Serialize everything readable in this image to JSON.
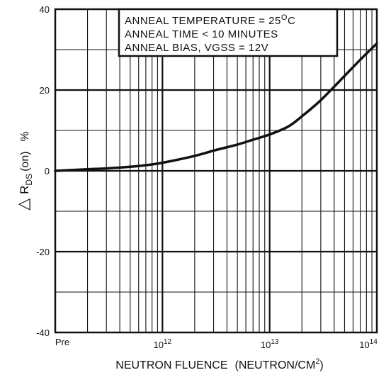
{
  "chart_data": {
    "type": "line",
    "xlabel": "NEUTRON FLUENCE",
    "xlabel_units": "(NEUTRON/CM",
    "xlabel_units_sup": "2",
    "xlabel_units_close": ")",
    "ylabel_delta": "△",
    "ylabel_main": "R",
    "ylabel_sub": "DS",
    "ylabel_tail": "(on)",
    "ylabel_units": "%",
    "x_scale": "log",
    "x_pre_label": "Pre",
    "x_decades": [
      {
        "base": "10",
        "exp": "12",
        "value": 1000000000000.0
      },
      {
        "base": "10",
        "exp": "13",
        "value": 10000000000000.0
      },
      {
        "base": "10",
        "exp": "14",
        "value": 100000000000000.0
      }
    ],
    "xlim": [
      100000000000.0,
      100000000000000.0
    ],
    "ylim": [
      -40,
      40
    ],
    "y_ticks": [
      {
        "value": 40,
        "label": "40"
      },
      {
        "value": 20,
        "label": "20"
      },
      {
        "value": 0,
        "label": "0"
      },
      {
        "value": -20,
        "label": "-20"
      },
      {
        "value": -40,
        "label": "-40"
      }
    ],
    "y_minor_gridlines": [
      30,
      10,
      -10,
      -30
    ],
    "grid": true,
    "annotations": [
      {
        "text": "ANNEAL TEMPERATURE = 25",
        "sup": "O",
        "tail": "C"
      },
      {
        "text": "ANNEAL TIME < 10 MINUTES",
        "sup": "",
        "tail": ""
      },
      {
        "text": "ANNEAL BIAS, VGSS = 12V",
        "sup": "",
        "tail": ""
      }
    ],
    "series": [
      {
        "color": "#111111",
        "x": [
          100000000000.0,
          200000000000.0,
          300000000000.0,
          500000000000.0,
          700000000000.0,
          1000000000000.0,
          2000000000000.0,
          3000000000000.0,
          5000000000000.0,
          7000000000000.0,
          10000000000000.0,
          15000000000000.0,
          20000000000000.0,
          30000000000000.0,
          50000000000000.0,
          70000000000000.0,
          100000000000000.0
        ],
        "y": [
          0,
          0.4,
          0.6,
          1.0,
          1.4,
          2.0,
          3.7,
          5.0,
          6.5,
          7.7,
          9.0,
          11.0,
          13.5,
          17.5,
          23.5,
          27.5,
          31.5
        ]
      }
    ]
  }
}
